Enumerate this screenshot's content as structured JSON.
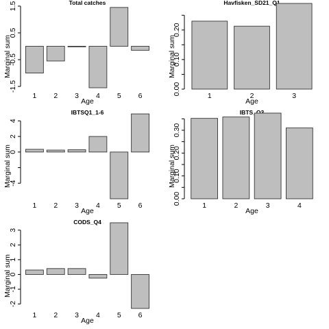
{
  "chart_data": [
    {
      "type": "bar",
      "title": "Total catches",
      "xlabel": "Age",
      "ylabel": "Marginal sum",
      "categories": [
        "1",
        "2",
        "3",
        "4",
        "5",
        "6"
      ],
      "values": [
        -1.0,
        -0.55,
        -0.02,
        -1.55,
        1.45,
        -0.15
      ],
      "ylim": [
        -1.6,
        1.6
      ],
      "yticks": [
        "-1.5",
        "-0.5",
        "0.5",
        "1.5"
      ],
      "ytick_values": [
        -1.5,
        -0.5,
        0.5,
        1.5
      ],
      "bar_color": "#bebebe"
    },
    {
      "type": "bar",
      "title": "Havfisken_SD21_Q1",
      "xlabel": "Age",
      "ylabel": "Marginal sum",
      "categories": [
        "1",
        "2",
        "3"
      ],
      "values": [
        0.23,
        0.213,
        0.29
      ],
      "ylim": [
        0,
        0.29
      ],
      "yticks": [
        "0.00",
        "0.10",
        "0.20"
      ],
      "ytick_values": [
        0,
        0.1,
        0.2
      ],
      "minor_tick_values": [
        0.05,
        0.15,
        0.25
      ],
      "bar_color": "#bebebe"
    },
    {
      "type": "bar",
      "title": "IBTSQ1_1-6",
      "xlabel": "Age",
      "ylabel": "Marginal sum",
      "categories": [
        "1",
        "2",
        "3",
        "4",
        "5",
        "6"
      ],
      "values": [
        0.35,
        0.25,
        0.3,
        2.0,
        -6.0,
        4.9
      ],
      "ylim": [
        -6.0,
        5.0
      ],
      "yticks": [
        "-4",
        "0",
        "2",
        "4"
      ],
      "ytick_values": [
        -4,
        0,
        2,
        4
      ],
      "minor_tick_values": [
        -2
      ],
      "bar_color": "#bebebe"
    },
    {
      "type": "bar",
      "title": "IBTS_Q3",
      "xlabel": "Age",
      "ylabel": "Marginal sum",
      "categories": [
        "1",
        "2",
        "3",
        "4"
      ],
      "values": [
        0.352,
        0.358,
        0.375,
        0.31
      ],
      "ylim": [
        0,
        0.375
      ],
      "yticks": [
        "0.00",
        "0.10",
        "0.20",
        "0.30"
      ],
      "ytick_values": [
        0,
        0.1,
        0.2,
        0.3
      ],
      "minor_tick_values": [
        0.05,
        0.15,
        0.25,
        0.35
      ],
      "bar_color": "#bebebe"
    },
    {
      "type": "bar",
      "title": "CODS_Q4",
      "xlabel": "Age",
      "ylabel": "Marginal sum",
      "categories": [
        "1",
        "2",
        "3",
        "4",
        "5",
        "6"
      ],
      "values": [
        0.3,
        0.4,
        0.4,
        -0.25,
        3.5,
        -2.3
      ],
      "ylim": [
        -2.3,
        3.5
      ],
      "yticks": [
        "-2",
        "-1",
        "0",
        "1",
        "2",
        "3"
      ],
      "ytick_values": [
        -2,
        -1,
        0,
        1,
        2,
        3
      ],
      "bar_color": "#bebebe"
    }
  ]
}
